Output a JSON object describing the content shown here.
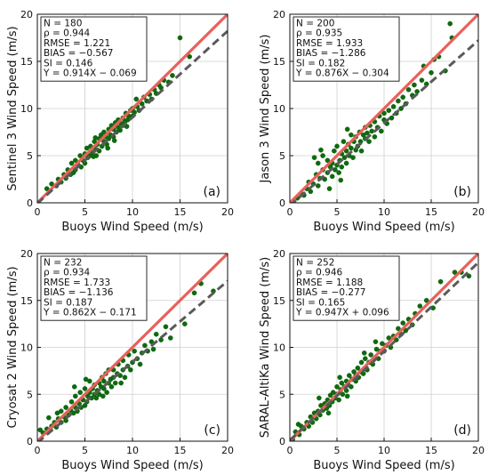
{
  "chart_data": [
    {
      "type": "scatter",
      "panel": "(a)",
      "xlabel": "Buoys Wind Speed (m/s)",
      "ylabel": "Sentinel 3 Wind Speed (m/s)",
      "xlim": [
        0,
        20
      ],
      "ylim": [
        0,
        20
      ],
      "xticks": [
        0,
        5,
        10,
        15,
        20
      ],
      "yticks": [
        0,
        5,
        10,
        15,
        20
      ],
      "grid": true,
      "stats": [
        "N = 180",
        "ρ = 0.944",
        "RMSE = 1.221",
        "BIAS = −0.567",
        "SI = 0.146",
        "Y = 0.914X − 0.069"
      ],
      "fit": {
        "slope": 0.914,
        "intercept": -0.069
      },
      "points": [
        [
          1.0,
          1.5
        ],
        [
          1.5,
          2.0
        ],
        [
          2.0,
          1.8
        ],
        [
          2.2,
          2.5
        ],
        [
          2.5,
          2.2
        ],
        [
          2.8,
          3.0
        ],
        [
          3.0,
          2.6
        ],
        [
          3.2,
          3.5
        ],
        [
          3.5,
          3.0
        ],
        [
          3.6,
          4.2
        ],
        [
          4.0,
          3.5
        ],
        [
          4.0,
          4.5
        ],
        [
          4.3,
          4.0
        ],
        [
          4.5,
          5.0
        ],
        [
          4.6,
          3.8
        ],
        [
          4.8,
          4.5
        ],
        [
          5.0,
          5.2
        ],
        [
          5.0,
          4.2
        ],
        [
          5.2,
          5.8
        ],
        [
          5.3,
          4.8
        ],
        [
          5.5,
          5.0
        ],
        [
          5.6,
          6.0
        ],
        [
          5.8,
          5.3
        ],
        [
          6.0,
          5.8
        ],
        [
          6.0,
          6.5
        ],
        [
          6.2,
          5.0
        ],
        [
          6.3,
          6.2
        ],
        [
          6.5,
          6.8
        ],
        [
          6.5,
          5.5
        ],
        [
          6.7,
          7.2
        ],
        [
          6.8,
          6.0
        ],
        [
          7.0,
          6.5
        ],
        [
          7.0,
          7.5
        ],
        [
          7.2,
          7.0
        ],
        [
          7.3,
          6.2
        ],
        [
          7.5,
          7.8
        ],
        [
          7.5,
          6.8
        ],
        [
          7.7,
          7.2
        ],
        [
          7.8,
          8.2
        ],
        [
          8.0,
          7.0
        ],
        [
          8.0,
          7.8
        ],
        [
          8.2,
          8.5
        ],
        [
          8.3,
          7.5
        ],
        [
          8.5,
          8.0
        ],
        [
          8.5,
          8.8
        ],
        [
          8.7,
          7.7
        ],
        [
          8.8,
          8.4
        ],
        [
          9.0,
          8.2
        ],
        [
          9.0,
          9.0
        ],
        [
          9.2,
          8.6
        ],
        [
          9.3,
          9.5
        ],
        [
          9.5,
          8.8
        ],
        [
          9.6,
          9.2
        ],
        [
          9.8,
          9.8
        ],
        [
          10.0,
          9.2
        ],
        [
          10.0,
          10.0
        ],
        [
          10.2,
          9.6
        ],
        [
          10.5,
          10.2
        ],
        [
          10.7,
          9.8
        ],
        [
          11.0,
          10.5
        ],
        [
          11.2,
          11.2
        ],
        [
          11.5,
          10.8
        ],
        [
          11.8,
          11.5
        ],
        [
          12.0,
          11.0
        ],
        [
          12.3,
          12.0
        ],
        [
          12.5,
          11.6
        ],
        [
          12.8,
          12.5
        ],
        [
          13.0,
          12.2
        ],
        [
          13.3,
          13.0
        ],
        [
          13.8,
          12.8
        ],
        [
          14.2,
          13.5
        ],
        [
          15.0,
          17.5
        ],
        [
          16.0,
          15.5
        ],
        [
          7.4,
          5.8
        ],
        [
          8.1,
          6.6
        ],
        [
          6.1,
          6.9
        ],
        [
          5.9,
          4.9
        ],
        [
          9.4,
          8.1
        ],
        [
          10.4,
          11.0
        ],
        [
          3.8,
          3.2
        ]
      ]
    },
    {
      "type": "scatter",
      "panel": "(b)",
      "xlabel": "Buoys Wind Speed (m/s)",
      "ylabel": "Jason 3 Wind Speed (m/s)",
      "xlim": [
        0,
        20
      ],
      "ylim": [
        0,
        20
      ],
      "xticks": [
        0,
        5,
        10,
        15,
        20
      ],
      "yticks": [
        0,
        5,
        10,
        15,
        20
      ],
      "grid": true,
      "stats": [
        "N = 200",
        "ρ = 0.935",
        "RMSE = 1.933",
        "BIAS = −1.286",
        "SI = 0.182",
        "Y = 0.876X − 0.304"
      ],
      "fit": {
        "slope": 0.876,
        "intercept": -0.304
      },
      "points": [
        [
          0.8,
          0.5
        ],
        [
          1.2,
          1.0
        ],
        [
          1.5,
          0.8
        ],
        [
          1.8,
          1.5
        ],
        [
          2.0,
          2.2
        ],
        [
          2.2,
          1.2
        ],
        [
          2.5,
          2.0
        ],
        [
          2.8,
          3.0
        ],
        [
          3.0,
          1.8
        ],
        [
          3.0,
          4.2
        ],
        [
          3.2,
          2.6
        ],
        [
          3.5,
          3.5
        ],
        [
          3.5,
          5.0
        ],
        [
          3.7,
          2.5
        ],
        [
          4.0,
          3.2
        ],
        [
          4.0,
          4.5
        ],
        [
          4.2,
          1.5
        ],
        [
          4.3,
          3.8
        ],
        [
          4.5,
          2.8
        ],
        [
          4.5,
          4.2
        ],
        [
          4.7,
          5.5
        ],
        [
          4.8,
          3.5
        ],
        [
          5.0,
          4.0
        ],
        [
          5.0,
          6.0
        ],
        [
          5.2,
          3.2
        ],
        [
          5.3,
          4.5
        ],
        [
          5.5,
          5.2
        ],
        [
          5.5,
          3.8
        ],
        [
          5.7,
          6.5
        ],
        [
          5.8,
          4.8
        ],
        [
          6.0,
          5.5
        ],
        [
          6.0,
          4.2
        ],
        [
          6.2,
          6.2
        ],
        [
          6.3,
          5.0
        ],
        [
          6.5,
          5.8
        ],
        [
          6.5,
          7.2
        ],
        [
          6.7,
          4.8
        ],
        [
          6.8,
          6.5
        ],
        [
          7.0,
          5.6
        ],
        [
          7.0,
          7.0
        ],
        [
          7.2,
          6.0
        ],
        [
          7.4,
          7.5
        ],
        [
          7.5,
          6.5
        ],
        [
          7.6,
          5.5
        ],
        [
          7.8,
          7.2
        ],
        [
          8.0,
          6.8
        ],
        [
          8.0,
          8.0
        ],
        [
          8.2,
          7.4
        ],
        [
          8.4,
          6.5
        ],
        [
          8.5,
          8.2
        ],
        [
          8.7,
          7.6
        ],
        [
          9.0,
          7.0
        ],
        [
          9.0,
          8.6
        ],
        [
          9.3,
          8.0
        ],
        [
          9.5,
          9.2
        ],
        [
          9.7,
          7.6
        ],
        [
          10.0,
          8.8
        ],
        [
          10.0,
          9.5
        ],
        [
          10.3,
          8.4
        ],
        [
          10.5,
          9.8
        ],
        [
          10.8,
          9.0
        ],
        [
          11.0,
          10.2
        ],
        [
          11.3,
          9.5
        ],
        [
          11.5,
          10.8
        ],
        [
          11.8,
          10.0
        ],
        [
          12.0,
          11.2
        ],
        [
          12.3,
          10.5
        ],
        [
          12.6,
          12.0
        ],
        [
          13.0,
          11.4
        ],
        [
          13.2,
          12.5
        ],
        [
          13.5,
          11.8
        ],
        [
          14.0,
          13.0
        ],
        [
          14.2,
          14.5
        ],
        [
          14.5,
          12.6
        ],
        [
          15.0,
          13.8
        ],
        [
          15.3,
          15.2
        ],
        [
          15.8,
          15.5
        ],
        [
          16.5,
          14.0
        ],
        [
          17.0,
          19.0
        ],
        [
          17.2,
          17.5
        ],
        [
          2.6,
          4.8
        ],
        [
          3.3,
          5.6
        ],
        [
          6.1,
          7.8
        ],
        [
          5.4,
          2.4
        ]
      ]
    },
    {
      "type": "scatter",
      "panel": "(c)",
      "xlabel": "Buoys Wind Speed (m/s)",
      "ylabel": "Cryosat 2 Wind Speed (m/s)",
      "xlim": [
        0,
        20
      ],
      "ylim": [
        0,
        20
      ],
      "xticks": [
        0,
        5,
        10,
        15,
        20
      ],
      "yticks": [
        0,
        5,
        10,
        15,
        20
      ],
      "grid": true,
      "stats": [
        "N = 232",
        "ρ = 0.934",
        "RMSE = 1.733",
        "BIAS = −1.136",
        "SI = 0.187",
        "Y = 0.862X − 0.171"
      ],
      "fit": {
        "slope": 0.862,
        "intercept": -0.171
      },
      "points": [
        [
          0.3,
          1.2
        ],
        [
          0.6,
          0.9
        ],
        [
          1.0,
          1.3
        ],
        [
          1.2,
          2.5
        ],
        [
          1.5,
          1.6
        ],
        [
          1.8,
          2.0
        ],
        [
          2.0,
          1.5
        ],
        [
          2.2,
          2.4
        ],
        [
          2.5,
          2.0
        ],
        [
          2.5,
          3.2
        ],
        [
          2.8,
          2.6
        ],
        [
          3.0,
          2.2
        ],
        [
          3.0,
          3.6
        ],
        [
          3.3,
          2.8
        ],
        [
          3.5,
          3.3
        ],
        [
          3.6,
          4.2
        ],
        [
          3.8,
          3.0
        ],
        [
          4.0,
          3.6
        ],
        [
          4.0,
          4.8
        ],
        [
          4.2,
          3.2
        ],
        [
          4.4,
          4.0
        ],
        [
          4.5,
          5.2
        ],
        [
          4.6,
          3.6
        ],
        [
          4.8,
          4.4
        ],
        [
          5.0,
          3.8
        ],
        [
          5.0,
          5.6
        ],
        [
          5.2,
          4.2
        ],
        [
          5.3,
          4.8
        ],
        [
          5.5,
          5.2
        ],
        [
          5.5,
          6.4
        ],
        [
          5.7,
          4.6
        ],
        [
          5.8,
          5.6
        ],
        [
          6.0,
          5.0
        ],
        [
          6.0,
          6.0
        ],
        [
          6.2,
          4.6
        ],
        [
          6.3,
          5.4
        ],
        [
          6.5,
          6.2
        ],
        [
          6.5,
          5.0
        ],
        [
          6.7,
          5.8
        ],
        [
          6.8,
          6.8
        ],
        [
          7.0,
          5.6
        ],
        [
          7.0,
          6.4
        ],
        [
          7.2,
          7.2
        ],
        [
          7.3,
          5.2
        ],
        [
          7.5,
          6.2
        ],
        [
          7.5,
          7.6
        ],
        [
          7.7,
          6.6
        ],
        [
          7.8,
          5.8
        ],
        [
          8.0,
          6.8
        ],
        [
          8.0,
          7.6
        ],
        [
          8.2,
          6.2
        ],
        [
          8.4,
          7.2
        ],
        [
          8.5,
          8.2
        ],
        [
          8.7,
          7.0
        ],
        [
          9.0,
          7.6
        ],
        [
          9.0,
          8.6
        ],
        [
          9.2,
          6.8
        ],
        [
          9.5,
          8.0
        ],
        [
          9.6,
          9.2
        ],
        [
          9.8,
          7.6
        ],
        [
          10.0,
          8.4
        ],
        [
          10.2,
          9.6
        ],
        [
          10.5,
          8.8
        ],
        [
          10.8,
          8.2
        ],
        [
          11.0,
          9.4
        ],
        [
          11.3,
          10.2
        ],
        [
          11.6,
          9.6
        ],
        [
          12.0,
          10.6
        ],
        [
          12.2,
          9.8
        ],
        [
          12.5,
          11.4
        ],
        [
          13.0,
          10.8
        ],
        [
          13.5,
          12.2
        ],
        [
          14.0,
          11.0
        ],
        [
          15.5,
          12.5
        ],
        [
          16.5,
          15.8
        ],
        [
          17.2,
          16.8
        ],
        [
          18.5,
          16.0
        ],
        [
          3.9,
          5.8
        ],
        [
          5.1,
          6.6
        ],
        [
          2.1,
          3.0
        ],
        [
          6.9,
          4.8
        ],
        [
          8.8,
          6.2
        ]
      ]
    },
    {
      "type": "scatter",
      "panel": "(d)",
      "xlabel": "Buoys Wind Speed (m/s)",
      "ylabel": "SARAL-AltiKa Wind Speed (m/s)",
      "xlim": [
        0,
        20
      ],
      "ylim": [
        0,
        20
      ],
      "xticks": [
        0,
        5,
        10,
        15,
        20
      ],
      "yticks": [
        0,
        5,
        10,
        15,
        20
      ],
      "grid": true,
      "stats": [
        "N = 252",
        "ρ = 0.946",
        "RMSE = 1.188",
        "BIAS = −0.277",
        "SI = 0.165",
        "Y = 0.947X + 0.096"
      ],
      "fit": {
        "slope": 0.947,
        "intercept": 0.096
      },
      "points": [
        [
          0.3,
          0.2
        ],
        [
          0.6,
          1.0
        ],
        [
          1.0,
          0.7
        ],
        [
          1.2,
          1.6
        ],
        [
          1.5,
          1.3
        ],
        [
          1.8,
          2.0
        ],
        [
          2.0,
          1.6
        ],
        [
          2.2,
          2.6
        ],
        [
          2.4,
          2.0
        ],
        [
          2.6,
          3.0
        ],
        [
          2.8,
          2.4
        ],
        [
          3.0,
          3.2
        ],
        [
          3.2,
          2.8
        ],
        [
          3.3,
          3.8
        ],
        [
          3.5,
          3.3
        ],
        [
          3.7,
          4.0
        ],
        [
          3.9,
          3.5
        ],
        [
          4.0,
          4.4
        ],
        [
          4.2,
          3.8
        ],
        [
          4.3,
          4.9
        ],
        [
          4.5,
          4.2
        ],
        [
          4.6,
          5.2
        ],
        [
          4.8,
          4.6
        ],
        [
          5.0,
          5.0
        ],
        [
          5.0,
          5.8
        ],
        [
          5.2,
          4.4
        ],
        [
          5.4,
          5.5
        ],
        [
          5.5,
          6.2
        ],
        [
          5.6,
          5.0
        ],
        [
          5.8,
          5.8
        ],
        [
          6.0,
          6.4
        ],
        [
          6.0,
          5.4
        ],
        [
          6.2,
          6.0
        ],
        [
          6.3,
          7.0
        ],
        [
          6.5,
          5.8
        ],
        [
          6.6,
          6.6
        ],
        [
          6.8,
          7.4
        ],
        [
          7.0,
          6.4
        ],
        [
          7.0,
          7.0
        ],
        [
          7.2,
          7.8
        ],
        [
          7.3,
          6.8
        ],
        [
          7.5,
          7.4
        ],
        [
          7.6,
          8.4
        ],
        [
          7.8,
          7.2
        ],
        [
          8.0,
          7.8
        ],
        [
          8.0,
          8.8
        ],
        [
          8.2,
          7.6
        ],
        [
          8.4,
          8.4
        ],
        [
          8.6,
          9.2
        ],
        [
          8.8,
          8.2
        ],
        [
          9.0,
          8.8
        ],
        [
          9.2,
          9.8
        ],
        [
          9.4,
          8.8
        ],
        [
          9.6,
          9.6
        ],
        [
          9.8,
          10.4
        ],
        [
          10.0,
          9.6
        ],
        [
          10.2,
          10.2
        ],
        [
          10.5,
          11.0
        ],
        [
          10.7,
          10.0
        ],
        [
          11.0,
          11.2
        ],
        [
          11.3,
          10.8
        ],
        [
          11.5,
          12.0
        ],
        [
          11.8,
          11.4
        ],
        [
          12.0,
          12.6
        ],
        [
          12.3,
          11.8
        ],
        [
          12.6,
          13.0
        ],
        [
          13.0,
          12.4
        ],
        [
          13.3,
          13.6
        ],
        [
          13.8,
          14.4
        ],
        [
          14.5,
          15.0
        ],
        [
          15.2,
          14.2
        ],
        [
          16.0,
          17.0
        ],
        [
          17.5,
          18.0
        ],
        [
          18.2,
          18.0
        ],
        [
          19.0,
          17.6
        ],
        [
          4.1,
          3.0
        ],
        [
          6.1,
          4.8
        ],
        [
          5.3,
          6.8
        ],
        [
          7.9,
          9.4
        ],
        [
          9.1,
          10.6
        ],
        [
          3.1,
          4.6
        ],
        [
          0.9,
          1.8
        ]
      ]
    }
  ]
}
